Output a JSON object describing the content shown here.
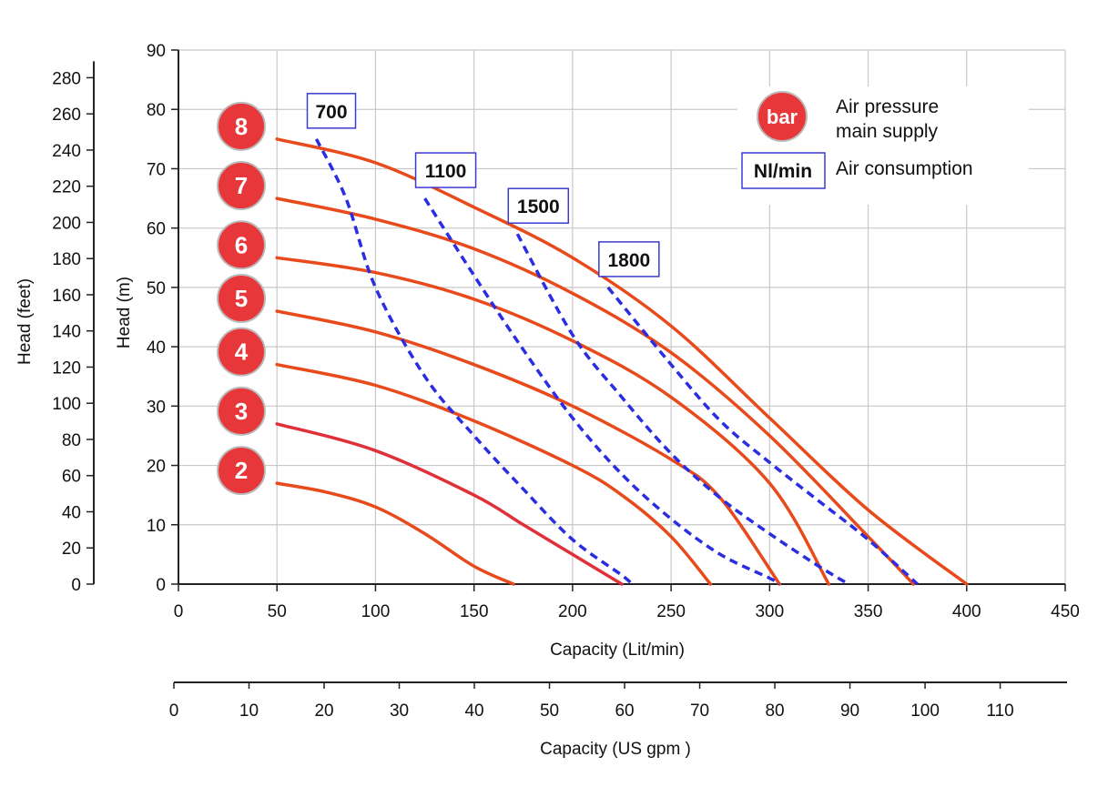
{
  "chart_data": {
    "type": "line",
    "title": "",
    "xlabel": "Capacity (Lit/min)",
    "ylabel": "Head (m)",
    "xlim": [
      0,
      450
    ],
    "ylim": [
      0,
      90
    ],
    "x_ticks": [
      0,
      50,
      100,
      150,
      200,
      250,
      300,
      350,
      400,
      450
    ],
    "y_ticks": [
      0,
      10,
      20,
      30,
      40,
      50,
      60,
      70,
      80,
      90
    ],
    "grid": true,
    "secondary_y": {
      "label": "Head (feet)",
      "range": [
        0,
        295.3
      ],
      "ticks": [
        0,
        20,
        40,
        60,
        80,
        100,
        120,
        140,
        160,
        180,
        200,
        220,
        240,
        260,
        280
      ]
    },
    "secondary_x": {
      "label": "Capacity (US gpm )",
      "range": [
        0,
        118.9
      ],
      "ticks": [
        0,
        10,
        20,
        30,
        40,
        50,
        60,
        70,
        80,
        90,
        100,
        110
      ]
    },
    "pressure_series": [
      {
        "name": "2",
        "color": "#e84a1b",
        "points": [
          [
            50,
            17
          ],
          [
            75,
            15.5
          ],
          [
            100,
            13
          ],
          [
            125,
            8.5
          ],
          [
            150,
            3
          ],
          [
            170,
            0
          ]
        ]
      },
      {
        "name": "3",
        "color": "#e0303a",
        "points": [
          [
            50,
            27
          ],
          [
            100,
            22.5
          ],
          [
            150,
            15
          ],
          [
            175,
            10
          ],
          [
            200,
            5
          ],
          [
            225,
            0
          ]
        ]
      },
      {
        "name": "4",
        "color": "#e84a1b",
        "points": [
          [
            50,
            37
          ],
          [
            100,
            33.5
          ],
          [
            150,
            27.5
          ],
          [
            200,
            20
          ],
          [
            225,
            15
          ],
          [
            250,
            8
          ],
          [
            270,
            0
          ]
        ]
      },
      {
        "name": "5",
        "color": "#e84a1b",
        "points": [
          [
            50,
            46
          ],
          [
            100,
            42.5
          ],
          [
            150,
            37
          ],
          [
            200,
            30
          ],
          [
            250,
            21
          ],
          [
            275,
            14.5
          ],
          [
            305,
            0
          ]
        ]
      },
      {
        "name": "6",
        "color": "#e84a1b",
        "points": [
          [
            50,
            55
          ],
          [
            100,
            52.5
          ],
          [
            150,
            48
          ],
          [
            200,
            41
          ],
          [
            250,
            31.5
          ],
          [
            300,
            17
          ],
          [
            330,
            0
          ]
        ]
      },
      {
        "name": "7",
        "color": "#e84a1b",
        "points": [
          [
            50,
            65
          ],
          [
            100,
            61.5
          ],
          [
            150,
            56.5
          ],
          [
            200,
            49
          ],
          [
            250,
            39
          ],
          [
            300,
            25
          ],
          [
            350,
            8
          ],
          [
            373,
            0
          ]
        ]
      },
      {
        "name": "8",
        "color": "#e84a1b",
        "points": [
          [
            50,
            75
          ],
          [
            100,
            71
          ],
          [
            150,
            63.5
          ],
          [
            200,
            55
          ],
          [
            250,
            43.5
          ],
          [
            300,
            28
          ],
          [
            350,
            12.5
          ],
          [
            400,
            0
          ]
        ]
      }
    ],
    "consumption_series": [
      {
        "name": "700",
        "color": "#2a2ee0",
        "points": [
          [
            70,
            75
          ],
          [
            85,
            65
          ],
          [
            100,
            50
          ],
          [
            125,
            35
          ],
          [
            150,
            25
          ],
          [
            175,
            16
          ],
          [
            200,
            7.5
          ],
          [
            225,
            1.5
          ],
          [
            230,
            0
          ]
        ]
      },
      {
        "name": "1100",
        "color": "#2a2ee0",
        "points": [
          [
            125,
            65
          ],
          [
            150,
            52
          ],
          [
            175,
            39.5
          ],
          [
            200,
            28
          ],
          [
            225,
            18.5
          ],
          [
            250,
            11
          ],
          [
            275,
            5
          ],
          [
            300,
            1
          ],
          [
            305,
            0
          ]
        ]
      },
      {
        "name": "1500",
        "color": "#2a2ee0",
        "points": [
          [
            172,
            59
          ],
          [
            200,
            42
          ],
          [
            225,
            31.5
          ],
          [
            250,
            22
          ],
          [
            275,
            14.5
          ],
          [
            300,
            8.5
          ],
          [
            325,
            3
          ],
          [
            340,
            0
          ]
        ]
      },
      {
        "name": "1800",
        "color": "#2a2ee0",
        "points": [
          [
            218,
            50
          ],
          [
            250,
            37
          ],
          [
            275,
            27.5
          ],
          [
            300,
            20.5
          ],
          [
            325,
            14
          ],
          [
            350,
            7.5
          ],
          [
            375,
            0
          ]
        ]
      }
    ],
    "pressure_label_unit": "bar",
    "consumption_label_unit": "Nl/min",
    "legend": [
      {
        "symbol": "bar",
        "text_lines": [
          "Air pressure",
          "main supply"
        ],
        "color": "#e8373a"
      },
      {
        "symbol": "Nl/min",
        "text_lines": [
          "Air consumption"
        ],
        "color": "#3b3bd0"
      }
    ],
    "legend_position": "top-right"
  }
}
